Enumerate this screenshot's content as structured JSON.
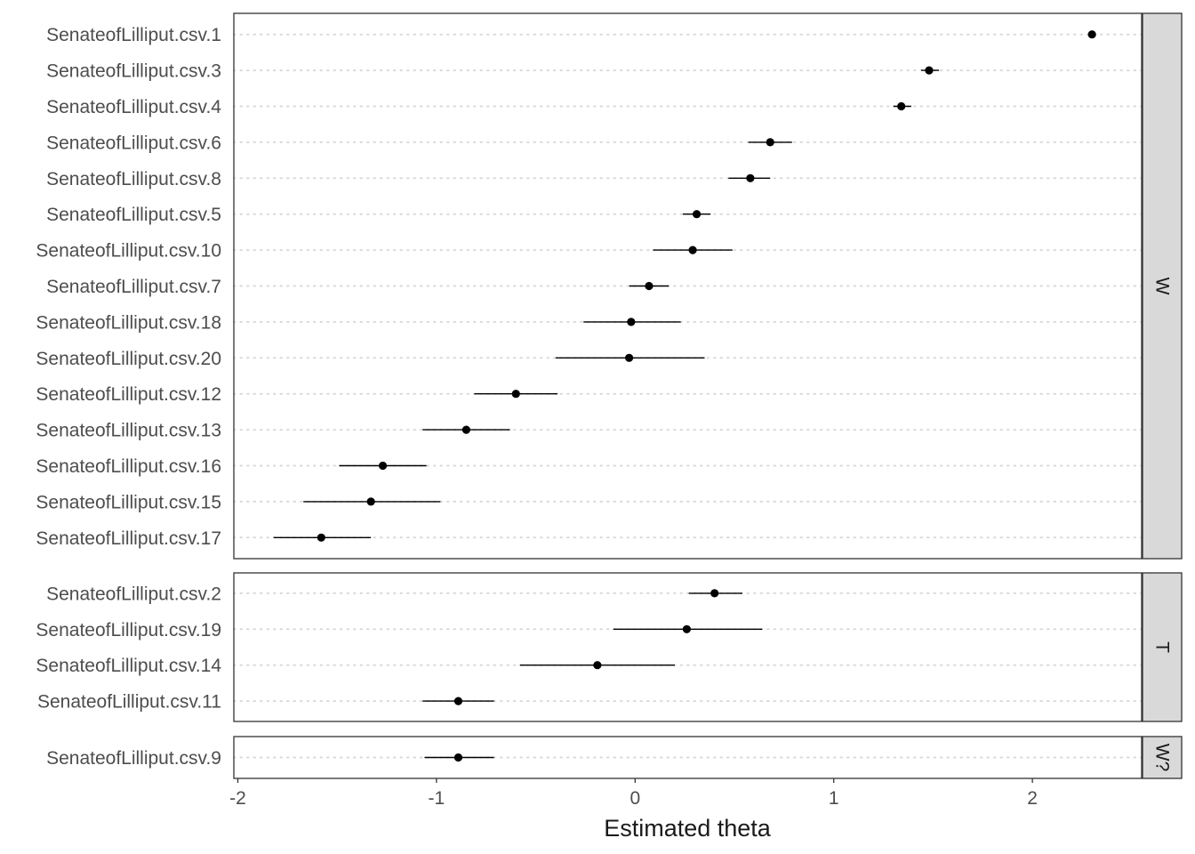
{
  "chart_data": {
    "type": "scatter",
    "xlabel": "Estimated theta",
    "xlim": [
      -2.02,
      2.55
    ],
    "xticks": [
      -2,
      -1,
      0,
      1,
      2
    ],
    "xtick_labels": [
      "-2",
      "-1",
      "0",
      "1",
      "2"
    ],
    "grid": "dotted horizontal",
    "facets": [
      {
        "label": "W",
        "points": [
          {
            "label": "SenateofLilliput.csv.1",
            "estimate": 2.3,
            "lower": 2.28,
            "upper": 2.32
          },
          {
            "label": "SenateofLilliput.csv.3",
            "estimate": 1.48,
            "lower": 1.44,
            "upper": 1.53
          },
          {
            "label": "SenateofLilliput.csv.4",
            "estimate": 1.34,
            "lower": 1.3,
            "upper": 1.39
          },
          {
            "label": "SenateofLilliput.csv.6",
            "estimate": 0.68,
            "lower": 0.57,
            "upper": 0.79
          },
          {
            "label": "SenateofLilliput.csv.8",
            "estimate": 0.58,
            "lower": 0.47,
            "upper": 0.68
          },
          {
            "label": "SenateofLilliput.csv.5",
            "estimate": 0.31,
            "lower": 0.24,
            "upper": 0.38
          },
          {
            "label": "SenateofLilliput.csv.10",
            "estimate": 0.29,
            "lower": 0.09,
            "upper": 0.49
          },
          {
            "label": "SenateofLilliput.csv.7",
            "estimate": 0.07,
            "lower": -0.03,
            "upper": 0.17
          },
          {
            "label": "SenateofLilliput.csv.18",
            "estimate": -0.02,
            "lower": -0.26,
            "upper": 0.23
          },
          {
            "label": "SenateofLilliput.csv.20",
            "estimate": -0.03,
            "lower": -0.4,
            "upper": 0.35
          },
          {
            "label": "SenateofLilliput.csv.12",
            "estimate": -0.6,
            "lower": -0.81,
            "upper": -0.39
          },
          {
            "label": "SenateofLilliput.csv.13",
            "estimate": -0.85,
            "lower": -1.07,
            "upper": -0.63
          },
          {
            "label": "SenateofLilliput.csv.16",
            "estimate": -1.27,
            "lower": -1.49,
            "upper": -1.05
          },
          {
            "label": "SenateofLilliput.csv.15",
            "estimate": -1.33,
            "lower": -1.67,
            "upper": -0.98
          },
          {
            "label": "SenateofLilliput.csv.17",
            "estimate": -1.58,
            "lower": -1.82,
            "upper": -1.33
          }
        ]
      },
      {
        "label": "T",
        "points": [
          {
            "label": "SenateofLilliput.csv.2",
            "estimate": 0.4,
            "lower": 0.27,
            "upper": 0.54
          },
          {
            "label": "SenateofLilliput.csv.19",
            "estimate": 0.26,
            "lower": -0.11,
            "upper": 0.64
          },
          {
            "label": "SenateofLilliput.csv.14",
            "estimate": -0.19,
            "lower": -0.58,
            "upper": 0.2
          },
          {
            "label": "SenateofLilliput.csv.11",
            "estimate": -0.89,
            "lower": -1.07,
            "upper": -0.71
          }
        ]
      },
      {
        "label": "W?",
        "points": [
          {
            "label": "SenateofLilliput.csv.9",
            "estimate": -0.89,
            "lower": -1.06,
            "upper": -0.71
          }
        ]
      }
    ]
  }
}
